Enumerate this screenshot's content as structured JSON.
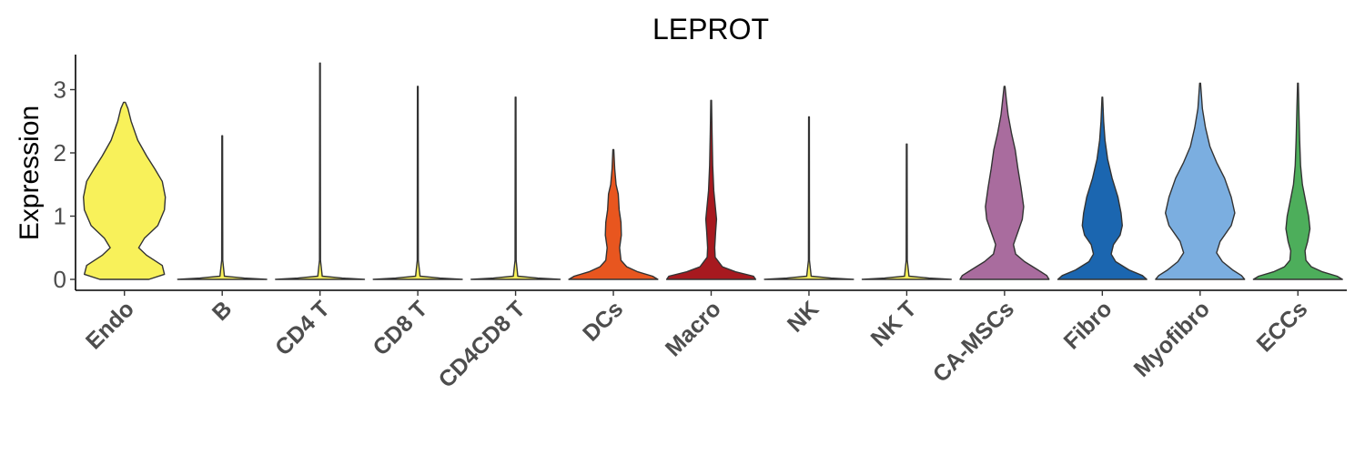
{
  "chart_data": {
    "type": "violin",
    "title": "LEPROT",
    "ylabel": "Expression",
    "xlabel": "",
    "ylim": [
      -0.15,
      3.55
    ],
    "yticks": [
      0,
      1,
      2,
      3
    ],
    "grid": false,
    "legend": "none",
    "categories": [
      "Endo",
      "B",
      "CD4 T",
      "CD8 T",
      "CD4CD8 T",
      "DCs",
      "Macro",
      "NK",
      "NK T",
      "CA-MSCs",
      "Fibro",
      "Myofibro",
      "ECCs"
    ],
    "series": [
      {
        "category": "Endo",
        "color": "#F8F15A",
        "max": 2.8,
        "profile": [
          [
            0,
            0.55
          ],
          [
            0.08,
            0.9
          ],
          [
            0.22,
            0.85
          ],
          [
            0.38,
            0.5
          ],
          [
            0.5,
            0.32
          ],
          [
            0.65,
            0.45
          ],
          [
            0.85,
            0.75
          ],
          [
            1.1,
            0.9
          ],
          [
            1.3,
            0.92
          ],
          [
            1.55,
            0.85
          ],
          [
            1.75,
            0.68
          ],
          [
            1.95,
            0.5
          ],
          [
            2.2,
            0.3
          ],
          [
            2.5,
            0.15
          ],
          [
            2.7,
            0.08
          ],
          [
            2.8,
            0.02
          ]
        ]
      },
      {
        "category": "B",
        "color": "#F8F15A",
        "max": 2.27,
        "profile": [
          [
            0,
            1
          ],
          [
            0.02,
            0.5
          ],
          [
            0.05,
            0.05
          ],
          [
            0.3,
            0.012
          ],
          [
            2.27,
            0.008
          ]
        ]
      },
      {
        "category": "CD4 T",
        "color": "#F8F15A",
        "max": 3.42,
        "profile": [
          [
            0,
            1
          ],
          [
            0.02,
            0.5
          ],
          [
            0.05,
            0.05
          ],
          [
            0.3,
            0.012
          ],
          [
            3.42,
            0.008
          ]
        ]
      },
      {
        "category": "CD8 T",
        "color": "#F8F15A",
        "max": 3.05,
        "profile": [
          [
            0,
            1
          ],
          [
            0.02,
            0.5
          ],
          [
            0.05,
            0.05
          ],
          [
            0.3,
            0.012
          ],
          [
            3.05,
            0.008
          ]
        ]
      },
      {
        "category": "CD4CD8 T",
        "color": "#F8F15A",
        "max": 2.88,
        "profile": [
          [
            0,
            1
          ],
          [
            0.02,
            0.5
          ],
          [
            0.05,
            0.05
          ],
          [
            0.3,
            0.012
          ],
          [
            2.88,
            0.008
          ]
        ]
      },
      {
        "category": "DCs",
        "color": "#E8561F",
        "max": 2.05,
        "profile": [
          [
            0,
            1
          ],
          [
            0.05,
            0.88
          ],
          [
            0.12,
            0.55
          ],
          [
            0.2,
            0.3
          ],
          [
            0.3,
            0.17
          ],
          [
            0.5,
            0.14
          ],
          [
            0.7,
            0.18
          ],
          [
            0.9,
            0.17
          ],
          [
            1.1,
            0.13
          ],
          [
            1.35,
            0.11
          ],
          [
            1.5,
            0.06
          ],
          [
            1.75,
            0.03
          ],
          [
            2.05,
            0.01
          ]
        ]
      },
      {
        "category": "Macro",
        "color": "#A7191F",
        "max": 2.83,
        "profile": [
          [
            0,
            1
          ],
          [
            0.05,
            0.95
          ],
          [
            0.12,
            0.55
          ],
          [
            0.2,
            0.25
          ],
          [
            0.35,
            0.09
          ],
          [
            0.5,
            0.08
          ],
          [
            0.75,
            0.1
          ],
          [
            0.95,
            0.12
          ],
          [
            1.1,
            0.1
          ],
          [
            1.4,
            0.06
          ],
          [
            1.8,
            0.035
          ],
          [
            2.3,
            0.02
          ],
          [
            2.83,
            0.008
          ]
        ]
      },
      {
        "category": "NK",
        "color": "#F8F15A",
        "max": 2.57,
        "profile": [
          [
            0,
            1
          ],
          [
            0.02,
            0.5
          ],
          [
            0.05,
            0.05
          ],
          [
            0.3,
            0.012
          ],
          [
            2.57,
            0.008
          ]
        ]
      },
      {
        "category": "NK T",
        "color": "#F8F15A",
        "max": 2.14,
        "profile": [
          [
            0,
            1
          ],
          [
            0.02,
            0.5
          ],
          [
            0.05,
            0.05
          ],
          [
            0.3,
            0.012
          ],
          [
            2.14,
            0.008
          ]
        ]
      },
      {
        "category": "CA-MSCs",
        "color": "#A96C9E",
        "max": 3.05,
        "profile": [
          [
            0,
            1
          ],
          [
            0.06,
            0.95
          ],
          [
            0.15,
            0.75
          ],
          [
            0.28,
            0.45
          ],
          [
            0.4,
            0.25
          ],
          [
            0.55,
            0.2
          ],
          [
            0.75,
            0.3
          ],
          [
            0.95,
            0.4
          ],
          [
            1.15,
            0.43
          ],
          [
            1.45,
            0.37
          ],
          [
            1.75,
            0.3
          ],
          [
            2.05,
            0.24
          ],
          [
            2.3,
            0.16
          ],
          [
            2.6,
            0.08
          ],
          [
            2.85,
            0.04
          ],
          [
            3.05,
            0.01
          ]
        ]
      },
      {
        "category": "Fibro",
        "color": "#1B66B0",
        "max": 2.88,
        "profile": [
          [
            0,
            1
          ],
          [
            0.06,
            0.9
          ],
          [
            0.15,
            0.6
          ],
          [
            0.28,
            0.3
          ],
          [
            0.4,
            0.2
          ],
          [
            0.55,
            0.25
          ],
          [
            0.7,
            0.4
          ],
          [
            0.85,
            0.45
          ],
          [
            1.05,
            0.42
          ],
          [
            1.3,
            0.35
          ],
          [
            1.6,
            0.22
          ],
          [
            1.9,
            0.12
          ],
          [
            2.2,
            0.06
          ],
          [
            2.5,
            0.03
          ],
          [
            2.88,
            0.008
          ]
        ]
      },
      {
        "category": "Myofibro",
        "color": "#7BAEE0",
        "max": 3.1,
        "profile": [
          [
            0,
            1
          ],
          [
            0.06,
            0.93
          ],
          [
            0.15,
            0.73
          ],
          [
            0.28,
            0.5
          ],
          [
            0.42,
            0.37
          ],
          [
            0.6,
            0.45
          ],
          [
            0.85,
            0.7
          ],
          [
            1.05,
            0.78
          ],
          [
            1.3,
            0.7
          ],
          [
            1.6,
            0.55
          ],
          [
            1.85,
            0.37
          ],
          [
            2.1,
            0.22
          ],
          [
            2.4,
            0.12
          ],
          [
            2.7,
            0.05
          ],
          [
            3.1,
            0.01
          ]
        ]
      },
      {
        "category": "ECCs",
        "color": "#4DAE5B",
        "max": 3.1,
        "profile": [
          [
            0,
            1
          ],
          [
            0.05,
            0.88
          ],
          [
            0.12,
            0.55
          ],
          [
            0.2,
            0.3
          ],
          [
            0.3,
            0.18
          ],
          [
            0.45,
            0.16
          ],
          [
            0.6,
            0.22
          ],
          [
            0.8,
            0.27
          ],
          [
            1.0,
            0.24
          ],
          [
            1.25,
            0.17
          ],
          [
            1.5,
            0.1
          ],
          [
            1.8,
            0.06
          ],
          [
            2.2,
            0.04
          ],
          [
            2.6,
            0.025
          ],
          [
            3.1,
            0.008
          ]
        ]
      }
    ]
  }
}
